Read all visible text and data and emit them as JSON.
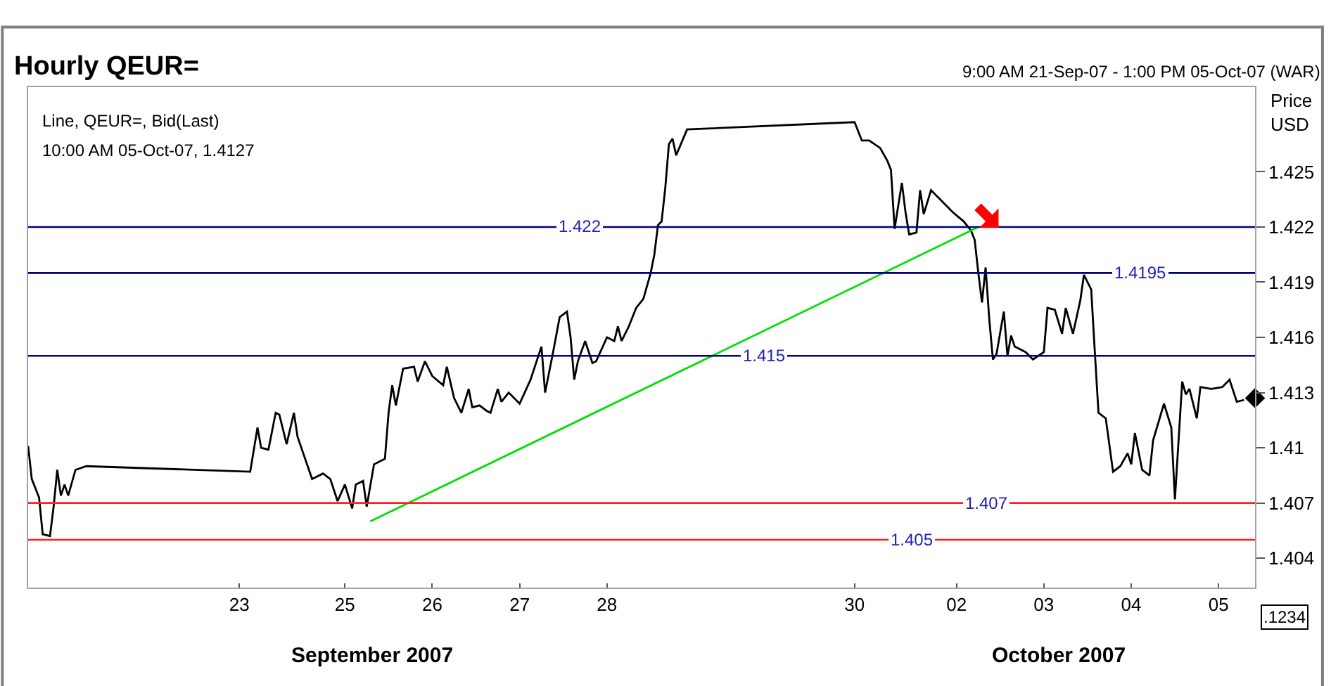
{
  "chart_data": {
    "type": "line",
    "title": "Hourly QEUR=",
    "subtitle": "9:00 AM 21-Sep-07 - 1:00 PM 05-Oct-07 (WAR)",
    "ylabel": "Price\nUSD",
    "annotations": [
      "Line, QEUR=, Bid(Last)",
      "10:00 AM 05-Oct-07, 1.4127",
      "September 2007",
      "October 2007",
      ".1234"
    ],
    "xlim": [
      "2007-09-21T09:00",
      "2007-10-05T10:00"
    ],
    "ylim": [
      1.4024,
      1.4296
    ],
    "xticks": [
      {
        "value": "2007-09-23T19:00",
        "label": "23"
      },
      {
        "value": "2007-09-25",
        "label": "25"
      },
      {
        "value": "2007-09-26",
        "label": "26"
      },
      {
        "value": "2007-09-27",
        "label": "27"
      },
      {
        "value": "2007-09-28",
        "label": "28"
      },
      {
        "value": "2007-09-30T20:00",
        "label": "30"
      },
      {
        "value": "2007-10-02",
        "label": "02"
      },
      {
        "value": "2007-10-03",
        "label": "03"
      },
      {
        "value": "2007-10-04",
        "label": "04"
      },
      {
        "value": "2007-10-05",
        "label": "05"
      }
    ],
    "yticks": [
      1.425,
      1.422,
      1.419,
      1.416,
      1.413,
      1.41,
      1.407,
      1.404
    ],
    "line_style": "solid",
    "marker": "none",
    "ref_lines": [
      {
        "axis": "y",
        "value": 1.422,
        "label": "1.422",
        "color": "#000080"
      },
      {
        "axis": "y",
        "value": 1.4195,
        "label": "1.4195",
        "color": "#000080"
      },
      {
        "axis": "y",
        "value": 1.415,
        "label": "1.415",
        "color": "#000080"
      },
      {
        "axis": "y",
        "value": 1.407,
        "label": "1.407",
        "color": "#ff2020"
      },
      {
        "axis": "y",
        "value": 1.405,
        "label": "1.405",
        "color": "#ff2020"
      }
    ],
    "series": [
      {
        "color": "#000000",
        "x": [
          "2007-09-21T09:00",
          "2007-09-21T10:00",
          "2007-09-21T12:00",
          "2007-09-21T13:00",
          "2007-09-21T15:00",
          "2007-09-21T16:00",
          "2007-09-21T17:00",
          "2007-09-21T18:00",
          "2007-09-21T19:00",
          "2007-09-21T20:00",
          "2007-09-21T22:00",
          "2007-09-22T01:00",
          "2007-09-23T22:00",
          "2007-09-24T00:00",
          "2007-09-24T01:00",
          "2007-09-24T03:00",
          "2007-09-24T05:00",
          "2007-09-24T06:00",
          "2007-09-24T08:00",
          "2007-09-24T10:00",
          "2007-09-24T11:00",
          "2007-09-24T15:00",
          "2007-09-24T18:00",
          "2007-09-24T20:00",
          "2007-09-24T22:00",
          "2007-09-25T00:00",
          "2007-09-25T02:00",
          "2007-09-25T03:00",
          "2007-09-25T05:00",
          "2007-09-25T06:00",
          "2007-09-25T08:00",
          "2007-09-25T11:00",
          "2007-09-25T12:00",
          "2007-09-25T13:00",
          "2007-09-25T14:00",
          "2007-09-25T16:00",
          "2007-09-25T19:00",
          "2007-09-25T20:00",
          "2007-09-25T22:00",
          "2007-09-26T00:00",
          "2007-09-26T03:00",
          "2007-09-26T04:00",
          "2007-09-26T06:00",
          "2007-09-26T08:00",
          "2007-09-26T10:00",
          "2007-09-26T11:00",
          "2007-09-26T13:00",
          "2007-09-26T15:00",
          "2007-09-26T16:00",
          "2007-09-26T18:00",
          "2007-09-26T19:00",
          "2007-09-26T21:00",
          "2007-09-27T00:00",
          "2007-09-27T03:00",
          "2007-09-27T06:00",
          "2007-09-27T07:00",
          "2007-09-27T09:00",
          "2007-09-27T11:00",
          "2007-09-27T13:00",
          "2007-09-27T14:00",
          "2007-09-27T15:00",
          "2007-09-27T16:00",
          "2007-09-27T18:00",
          "2007-09-27T20:00",
          "2007-09-27T21:00",
          "2007-09-28T00:00",
          "2007-09-28T02:00",
          "2007-09-28T03:00",
          "2007-09-28T04:00",
          "2007-09-28T06:00",
          "2007-09-28T08:00",
          "2007-09-28T10:00",
          "2007-09-28T12:00",
          "2007-09-28T13:00",
          "2007-09-28T14:00",
          "2007-09-28T15:00",
          "2007-09-28T16:00",
          "2007-09-28T17:00",
          "2007-09-28T18:00",
          "2007-09-28T19:00",
          "2007-09-28T22:00",
          "2007-09-30T20:00",
          "2007-09-30T22:00",
          "2007-10-01T00:00",
          "2007-10-01T03:00",
          "2007-10-01T05:00",
          "2007-10-01T06:00",
          "2007-10-01T07:00",
          "2007-10-01T09:00",
          "2007-10-01T10:00",
          "2007-10-01T11:00",
          "2007-10-01T13:00",
          "2007-10-01T14:00",
          "2007-10-01T15:00",
          "2007-10-01T17:00",
          "2007-10-01T19:00",
          "2007-10-01T21:00",
          "2007-10-01T23:00",
          "2007-10-02T02:00",
          "2007-10-02T04:00",
          "2007-10-02T05:00",
          "2007-10-02T06:00",
          "2007-10-02T07:00",
          "2007-10-02T08:00",
          "2007-10-02T09:00",
          "2007-10-02T10:00",
          "2007-10-02T11:00",
          "2007-10-02T13:00",
          "2007-10-02T14:00",
          "2007-10-02T15:00",
          "2007-10-02T16:00",
          "2007-10-02T19:00",
          "2007-10-02T21:00",
          "2007-10-03T00:00",
          "2007-10-03T01:00",
          "2007-10-03T03:00",
          "2007-10-03T05:00",
          "2007-10-03T06:00",
          "2007-10-03T08:00",
          "2007-10-03T10:00",
          "2007-10-03T11:00",
          "2007-10-03T13:00",
          "2007-10-03T14:00",
          "2007-10-03T15:00",
          "2007-10-03T17:00",
          "2007-10-03T19:00",
          "2007-10-03T21:00",
          "2007-10-03T23:00",
          "2007-10-04T00:00",
          "2007-10-04T01:00",
          "2007-10-04T03:00",
          "2007-10-04T05:00",
          "2007-10-04T06:00",
          "2007-10-04T09:00",
          "2007-10-04T11:00",
          "2007-10-04T12:00",
          "2007-10-04T13:00",
          "2007-10-04T14:00",
          "2007-10-04T15:00",
          "2007-10-04T16:00",
          "2007-10-04T18:00",
          "2007-10-04T19:00",
          "2007-10-04T22:00",
          "2007-10-05T01:00",
          "2007-10-05T03:00",
          "2007-10-05T05:00",
          "2007-10-05T07:00"
        ],
        "values": [
          1.4101,
          1.4083,
          1.4073,
          1.4053,
          1.4052,
          1.4068,
          1.4088,
          1.4074,
          1.408,
          1.4074,
          1.4088,
          1.409,
          1.4087,
          1.4111,
          1.41,
          1.4099,
          1.4119,
          1.4118,
          1.4102,
          1.4119,
          1.4106,
          1.4083,
          1.4086,
          1.4083,
          1.4071,
          1.408,
          1.4067,
          1.408,
          1.4082,
          1.4068,
          1.4091,
          1.4094,
          1.4119,
          1.4134,
          1.4123,
          1.4143,
          1.4144,
          1.4136,
          1.4147,
          1.4139,
          1.4134,
          1.4144,
          1.4127,
          1.4119,
          1.4132,
          1.4122,
          1.4123,
          1.412,
          1.4119,
          1.4132,
          1.4125,
          1.413,
          1.4124,
          1.4137,
          1.4155,
          1.413,
          1.415,
          1.4171,
          1.4174,
          1.416,
          1.4137,
          1.4147,
          1.4158,
          1.4146,
          1.4147,
          1.416,
          1.4158,
          1.4166,
          1.4158,
          1.4166,
          1.4176,
          1.4181,
          1.4195,
          1.4205,
          1.4221,
          1.4223,
          1.4241,
          1.4265,
          1.4268,
          1.4259,
          1.4273,
          1.4277,
          1.4267,
          1.4267,
          1.4263,
          1.4256,
          1.4251,
          1.4219,
          1.4244,
          1.4228,
          1.4216,
          1.4217,
          1.424,
          1.4227,
          1.424,
          1.4236,
          1.4232,
          1.4228,
          1.4223,
          1.4218,
          1.4213,
          1.4195,
          1.4179,
          1.4198,
          1.417,
          1.4148,
          1.4151,
          1.4174,
          1.415,
          1.4161,
          1.4155,
          1.4152,
          1.4148,
          1.4152,
          1.4176,
          1.4175,
          1.4162,
          1.4176,
          1.4162,
          1.418,
          1.4194,
          1.4186,
          1.4152,
          1.4119,
          1.4116,
          1.4087,
          1.409,
          1.4097,
          1.4091,
          1.4108,
          1.4088,
          1.4085,
          1.4104,
          1.4124,
          1.4111,
          1.4072,
          1.4104,
          1.4136,
          1.4129,
          1.4132,
          1.4116,
          1.4133,
          1.4132,
          1.4133,
          1.4137,
          1.4125,
          1.4126
        ]
      },
      {
        "type": "line",
        "color": "#00e000",
        "x": [
          "2007-09-25T07:00",
          "2007-10-02T06:00"
        ],
        "values": [
          1.406,
          1.422
        ]
      },
      {
        "type": "scatter",
        "color": "#000000",
        "marker": "diamond",
        "x": [
          "2007-10-05T10:00"
        ],
        "values": [
          1.4127
        ]
      }
    ]
  }
}
